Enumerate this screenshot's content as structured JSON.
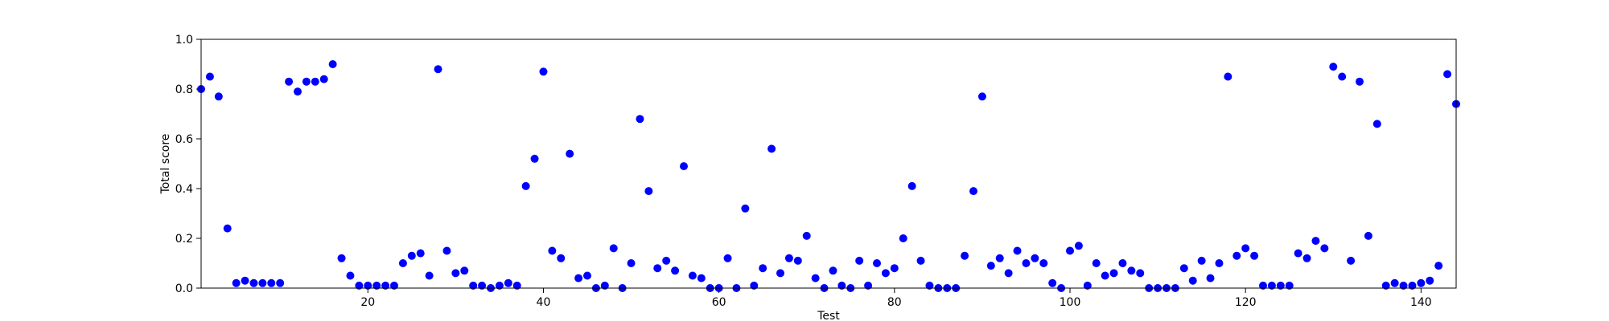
{
  "chart_data": {
    "type": "scatter",
    "title": "",
    "xlabel": "Test",
    "ylabel": "Total score",
    "xlim": [
      1,
      144
    ],
    "ylim": [
      0.0,
      1.0
    ],
    "x_ticks": [
      20,
      40,
      60,
      80,
      100,
      120,
      140
    ],
    "y_ticks": [
      0.0,
      0.2,
      0.4,
      0.6,
      0.8,
      1.0
    ],
    "x_tick_labels": [
      "20",
      "40",
      "60",
      "80",
      "100",
      "120",
      "140"
    ],
    "y_tick_labels": [
      "0.0",
      "0.2",
      "0.4",
      "0.6",
      "0.8",
      "1.0"
    ],
    "grid": false,
    "legend": "none",
    "marker_color": "#0000ff",
    "x": [
      1,
      2,
      3,
      4,
      5,
      6,
      7,
      8,
      9,
      10,
      11,
      12,
      13,
      14,
      15,
      16,
      17,
      18,
      19,
      20,
      21,
      22,
      23,
      24,
      25,
      26,
      27,
      28,
      29,
      30,
      31,
      32,
      33,
      34,
      35,
      36,
      37,
      38,
      39,
      40,
      41,
      42,
      43,
      44,
      45,
      46,
      47,
      48,
      49,
      50,
      51,
      52,
      53,
      54,
      55,
      56,
      57,
      58,
      59,
      60,
      61,
      62,
      63,
      64,
      65,
      66,
      67,
      68,
      69,
      70,
      71,
      72,
      73,
      74,
      75,
      76,
      77,
      78,
      79,
      80,
      81,
      82,
      83,
      84,
      85,
      86,
      87,
      88,
      89,
      90,
      91,
      92,
      93,
      94,
      95,
      96,
      97,
      98,
      99,
      100,
      101,
      102,
      103,
      104,
      105,
      106,
      107,
      108,
      109,
      110,
      111,
      112,
      113,
      114,
      115,
      116,
      117,
      118,
      119,
      120,
      121,
      122,
      123,
      124,
      125,
      126,
      127,
      128,
      129,
      130,
      131,
      132,
      133,
      134,
      135,
      136,
      137,
      138,
      139,
      140,
      141,
      142,
      143,
      144
    ],
    "y": [
      0.8,
      0.85,
      0.77,
      0.24,
      0.02,
      0.03,
      0.02,
      0.02,
      0.02,
      0.02,
      0.83,
      0.79,
      0.83,
      0.83,
      0.84,
      0.9,
      0.12,
      0.05,
      0.01,
      0.01,
      0.01,
      0.01,
      0.01,
      0.1,
      0.13,
      0.14,
      0.05,
      0.88,
      0.15,
      0.06,
      0.07,
      0.01,
      0.01,
      0.0,
      0.01,
      0.02,
      0.01,
      0.41,
      0.52,
      0.87,
      0.15,
      0.12,
      0.54,
      0.04,
      0.05,
      0.0,
      0.01,
      0.16,
      0.0,
      0.1,
      0.68,
      0.39,
      0.08,
      0.11,
      0.07,
      0.49,
      0.05,
      0.04,
      0.0,
      0.0,
      0.12,
      0.0,
      0.32,
      0.01,
      0.08,
      0.56,
      0.06,
      0.12,
      0.11,
      0.21,
      0.04,
      0.0,
      0.07,
      0.01,
      0.0,
      0.11,
      0.01,
      0.1,
      0.06,
      0.08,
      0.2,
      0.41,
      0.11,
      0.01,
      0.0,
      0.0,
      0.0,
      0.13,
      0.39,
      0.77,
      0.09,
      0.12,
      0.06,
      0.15,
      0.1,
      0.12,
      0.1,
      0.02,
      0.0,
      0.15,
      0.17,
      0.01,
      0.1,
      0.05,
      0.06,
      0.1,
      0.07,
      0.06,
      0.0,
      0.0,
      0.0,
      0.0,
      0.08,
      0.03,
      0.11,
      0.04,
      0.1,
      0.85,
      0.13,
      0.16,
      0.13,
      0.01,
      0.01,
      0.01,
      0.01,
      0.14,
      0.12,
      0.19,
      0.16,
      0.89,
      0.85,
      0.11,
      0.83,
      0.21,
      0.66,
      0.01,
      0.02,
      0.01,
      0.01,
      0.02,
      0.03,
      0.09,
      0.86,
      0.74
    ]
  }
}
